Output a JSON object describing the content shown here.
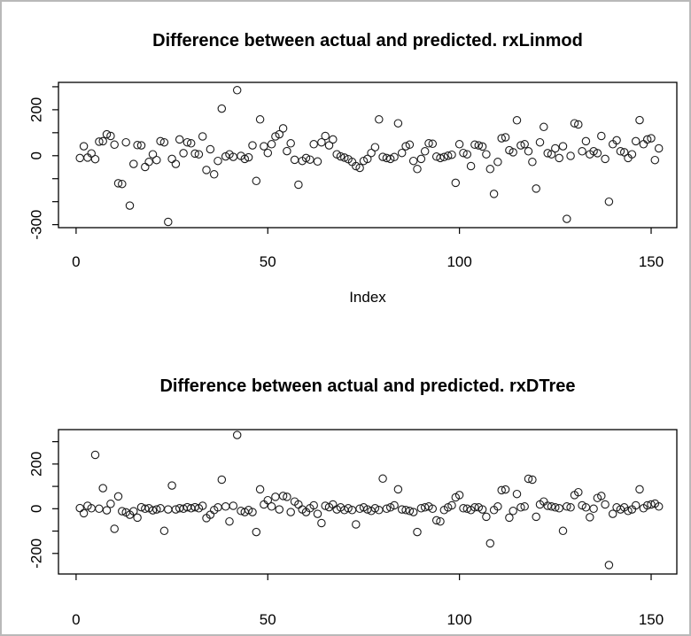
{
  "window": {
    "background": "#ffffff",
    "frame_color": "#b9b9b9",
    "plot_color": "#000000"
  },
  "chart_data": [
    {
      "type": "scatter",
      "title": "Difference between actual and predicted. rxLinmod",
      "xlabel": "Index",
      "ylabel": "",
      "marker": "open-circle",
      "grid": false,
      "x_ticks": [
        0,
        50,
        100,
        150
      ],
      "y_ticks": [
        300,
        200,
        100,
        0,
        -100,
        -200,
        -300
      ],
      "y_tick_labels_shown": [
        200,
        0,
        -300
      ],
      "xlim": [
        -4.6,
        156.7
      ],
      "ylim": [
        -313,
        319
      ],
      "x": {
        "from": 1,
        "to": 152,
        "step": 1
      },
      "y": [
        -10,
        41,
        -8,
        10,
        -15,
        61,
        63,
        93,
        86,
        48,
        -120,
        -123,
        58,
        -217,
        -36,
        46,
        45,
        -49,
        -27,
        6,
        -19,
        63,
        58,
        -288,
        -14,
        -36,
        71,
        11,
        58,
        54,
        9,
        6,
        84,
        -62,
        28,
        -81,
        -23,
        205,
        -3,
        6,
        -5,
        285,
        -1,
        -14,
        -7,
        45,
        -110,
        158,
        41,
        12,
        50,
        84,
        93,
        119,
        20,
        54,
        -18,
        -126,
        -23,
        -10,
        -17,
        50,
        -25,
        58,
        86,
        45,
        71,
        6,
        -3,
        -8,
        -15,
        -27,
        -45,
        -53,
        -23,
        -14,
        12,
        37,
        158,
        -5,
        -10,
        -14,
        -6,
        141,
        12,
        41,
        48,
        -23,
        -58,
        -14,
        19,
        54,
        52,
        -4,
        -10,
        -6,
        0,
        4,
        -118,
        50,
        12,
        6,
        -45,
        48,
        45,
        40,
        6,
        -58,
        -166,
        -27,
        76,
        80,
        24,
        15,
        154,
        45,
        50,
        19,
        -27,
        -143,
        58,
        125,
        11,
        6,
        32,
        -10,
        41,
        -275,
        -1,
        141,
        136,
        19,
        63,
        6,
        19,
        11,
        86,
        -14,
        -200,
        50,
        67,
        19,
        15,
        -10,
        6,
        63,
        155,
        50,
        71,
        76,
        -19,
        32
      ]
    },
    {
      "type": "scatter",
      "title": "Difference between actual and predicted. rxDTree",
      "xlabel": "",
      "ylabel": "",
      "marker": "open-circle",
      "grid": false,
      "x_ticks": [
        0,
        50,
        100,
        150
      ],
      "y_ticks": [
        300,
        200,
        100,
        0,
        -100,
        -200
      ],
      "y_tick_labels_shown": [
        200,
        0,
        -200
      ],
      "xlim": [
        -4.6,
        156.7
      ],
      "ylim": [
        -292,
        354
      ],
      "x": {
        "from": 1,
        "to": 152,
        "step": 1
      },
      "y": [
        3,
        -20,
        13,
        2,
        241,
        0,
        92,
        -7,
        22,
        -90,
        55,
        -11,
        -16,
        -27,
        -11,
        -40,
        7,
        0,
        2,
        -7,
        -3,
        2,
        -99,
        -3,
        104,
        -3,
        2,
        0,
        7,
        2,
        7,
        2,
        13,
        -42,
        -27,
        -6,
        6,
        130,
        10,
        -57,
        13,
        330,
        -10,
        -15,
        -6,
        -15,
        -104,
        87,
        19,
        38,
        10,
        53,
        -3,
        57,
        53,
        -15,
        32,
        19,
        -3,
        -15,
        2,
        15,
        -23,
        -64,
        13,
        7,
        19,
        -3,
        6,
        -6,
        2,
        -6,
        -70,
        0,
        6,
        -3,
        -10,
        2,
        -6,
        135,
        0,
        6,
        15,
        87,
        -3,
        -6,
        -10,
        -15,
        -104,
        2,
        6,
        10,
        0,
        -52,
        -57,
        -6,
        6,
        15,
        51,
        61,
        2,
        0,
        -6,
        6,
        6,
        -3,
        -36,
        -155,
        -6,
        10,
        83,
        86,
        -40,
        -10,
        66,
        6,
        10,
        134,
        130,
        -36,
        19,
        32,
        13,
        10,
        6,
        2,
        -99,
        10,
        6,
        61,
        74,
        15,
        6,
        -38,
        0,
        48,
        57,
        19,
        -252,
        -23,
        6,
        -3,
        6,
        -10,
        -3,
        15,
        87,
        2,
        15,
        19,
        23,
        10
      ]
    }
  ]
}
